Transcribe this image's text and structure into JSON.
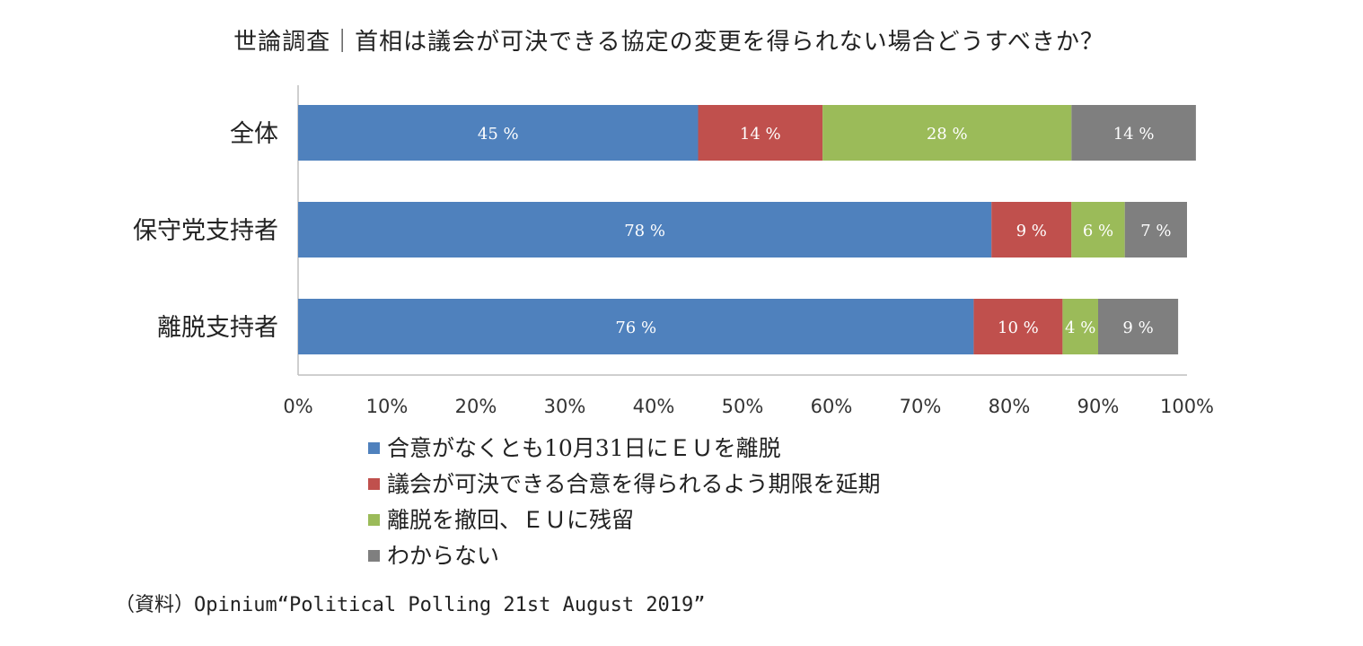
{
  "title": "世論調査｜首相は議会が可決できる協定の変更を得られない場合どうすべきか？",
  "source": "（資料）Opinium“Political Polling 21st August 2019”",
  "chart_data": {
    "type": "bar",
    "orientation": "horizontal",
    "stacked": true,
    "categories": [
      "全体",
      "保守党支持者",
      "離脱支持者"
    ],
    "series": [
      {
        "name": "合意がなくとも10月31日にＥＵを離脱",
        "color": "#4f81bd",
        "values": [
          45,
          78,
          76
        ],
        "labels": [
          "45 %",
          "78 %",
          "76 %"
        ]
      },
      {
        "name": "議会が可決できる合意を得られるよう期限を延期",
        "color": "#c0504d",
        "values": [
          14,
          9,
          10
        ],
        "labels": [
          "14 %",
          "9 %",
          "10 %"
        ]
      },
      {
        "name": "離脱を撤回、ＥＵに残留",
        "color": "#9bbb59",
        "values": [
          28,
          6,
          4
        ],
        "labels": [
          "28 %",
          "6 %",
          "4 %"
        ]
      },
      {
        "name": "わからない",
        "color": "#7f7f7f",
        "values": [
          14,
          7,
          9
        ],
        "labels": [
          "14 %",
          "7 %",
          "9 %"
        ]
      }
    ],
    "x_ticks": [
      "0%",
      "10%",
      "20%",
      "30%",
      "40%",
      "50%",
      "60%",
      "70%",
      "80%",
      "90%",
      "100%"
    ],
    "xlim": [
      0,
      100
    ],
    "grid": false,
    "legend_position": "bottom"
  }
}
